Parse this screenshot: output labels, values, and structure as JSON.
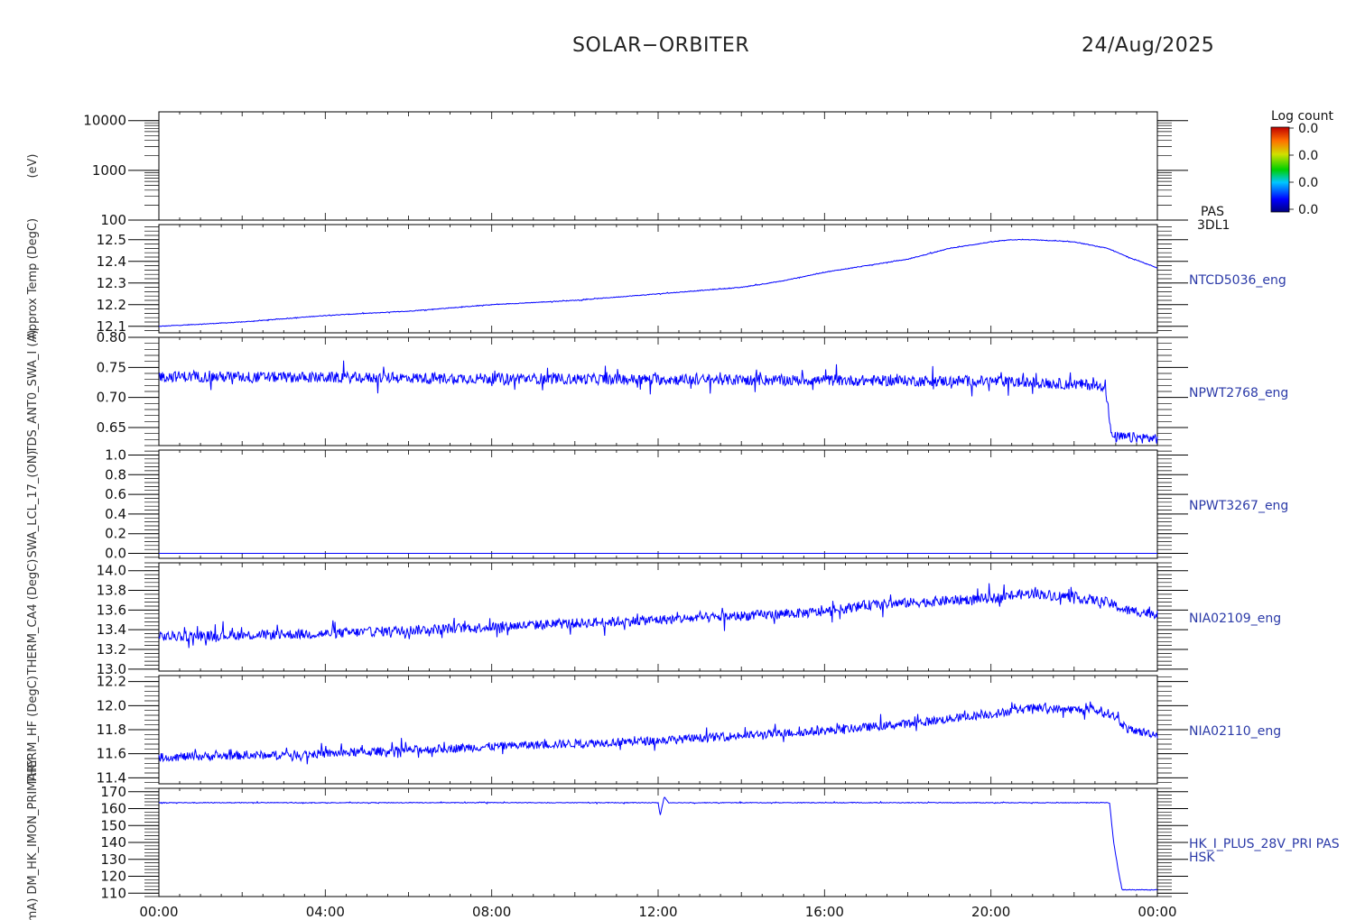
{
  "header": {
    "title": "SOLAR−ORBITER",
    "date": "24/Aug/2025"
  },
  "colorbar": {
    "title": "Log count",
    "tick_labels": [
      "0.0",
      "0.0",
      "0.0",
      "0.0"
    ]
  },
  "x_tick_labels": [
    "00:00",
    "04:00",
    "08:00",
    "12:00",
    "16:00",
    "20:00",
    "00:00"
  ],
  "chart_data": [
    {
      "type": "heatmap",
      "panel_id": "pas-3dl1",
      "label_lines": [
        "PAS",
        "3DL1"
      ],
      "ylabel": "(eV)",
      "log_y": true,
      "ylim": [
        100,
        15000
      ],
      "y_tick_labels": [
        {
          "label": "10000",
          "value": 10000
        },
        {
          "label": "1000",
          "value": 1000
        },
        {
          "label": "100",
          "value": 100
        }
      ],
      "color": "#ffffff",
      "x_hours": [],
      "values": []
    },
    {
      "type": "line",
      "panel_id": "ntcd5036",
      "label_lines": [
        "NTCD5036_eng"
      ],
      "ylabel": "Approx Temp (DegC)",
      "log_y": false,
      "ylim": [
        12.07,
        12.57
      ],
      "y_tick_labels": [
        {
          "label": "12.5",
          "value": 12.5
        },
        {
          "label": "12.4",
          "value": 12.4
        },
        {
          "label": "12.3",
          "value": 12.3
        },
        {
          "label": "12.2",
          "value": 12.2
        },
        {
          "label": "12.1",
          "value": 12.1
        }
      ],
      "color": "#0000ff",
      "x_hours": [
        0,
        2,
        4,
        6,
        8,
        10,
        12,
        14,
        15,
        16,
        17,
        18,
        19,
        20,
        20.5,
        21,
        22,
        22.8,
        23.3,
        24
      ],
      "values": [
        12.1,
        12.12,
        12.15,
        12.17,
        12.2,
        12.22,
        12.25,
        12.28,
        12.31,
        12.35,
        12.38,
        12.41,
        12.46,
        12.49,
        12.5,
        12.5,
        12.49,
        12.46,
        12.42,
        12.37
      ],
      "noise": 0.003
    },
    {
      "type": "line",
      "panel_id": "npwt2768",
      "label_lines": [
        "NPWT2768_eng"
      ],
      "ylabel": "TDS_ANT0_SWA_I (A)",
      "log_y": false,
      "ylim": [
        0.62,
        0.8
      ],
      "y_tick_labels": [
        {
          "label": "0.80",
          "value": 0.8
        },
        {
          "label": "0.75",
          "value": 0.75
        },
        {
          "label": "0.70",
          "value": 0.7
        },
        {
          "label": "0.65",
          "value": 0.65
        }
      ],
      "color": "#0000ff",
      "x_hours": [
        0,
        12,
        20,
        22.75,
        22.9,
        24
      ],
      "values": [
        0.735,
        0.73,
        0.727,
        0.72,
        0.634,
        0.632
      ],
      "noise": 0.018
    },
    {
      "type": "line",
      "panel_id": "npwt3267",
      "label_lines": [
        "NPWT3267_eng"
      ],
      "ylabel": "SWA_LCL_17_(ON)",
      "log_y": false,
      "ylim": [
        -0.05,
        1.05
      ],
      "y_tick_labels": [
        {
          "label": "1.0",
          "value": 1.0
        },
        {
          "label": "0.8",
          "value": 0.8
        },
        {
          "label": "0.6",
          "value": 0.6
        },
        {
          "label": "0.4",
          "value": 0.4
        },
        {
          "label": "0.2",
          "value": 0.2
        },
        {
          "label": "0.0",
          "value": 0.0
        }
      ],
      "color": "#0000ff",
      "x_hours": [
        0,
        24
      ],
      "values": [
        0.0,
        0.0
      ],
      "noise": 0.0
    },
    {
      "type": "line",
      "panel_id": "nia02109",
      "label_lines": [
        "NIA02109_eng"
      ],
      "ylabel": "THERM_CA4 (DegC)",
      "log_y": false,
      "ylim": [
        12.98,
        14.08
      ],
      "y_tick_labels": [
        {
          "label": "14.0",
          "value": 14.0
        },
        {
          "label": "13.8",
          "value": 13.8
        },
        {
          "label": "13.6",
          "value": 13.6
        },
        {
          "label": "13.4",
          "value": 13.4
        },
        {
          "label": "13.2",
          "value": 13.2
        },
        {
          "label": "13.0",
          "value": 13.0
        }
      ],
      "color": "#0000ff",
      "x_hours": [
        0,
        4,
        8,
        12,
        16,
        17,
        20,
        21,
        22,
        22.8,
        23.2,
        24
      ],
      "values": [
        13.33,
        13.36,
        13.43,
        13.5,
        13.58,
        13.65,
        13.72,
        13.77,
        13.73,
        13.68,
        13.6,
        13.56
      ],
      "noise": 0.1
    },
    {
      "type": "line",
      "panel_id": "nia02110",
      "label_lines": [
        "NIA02110_eng"
      ],
      "ylabel": "THERM_HF (DegC)",
      "log_y": false,
      "ylim": [
        11.35,
        12.25
      ],
      "y_tick_labels": [
        {
          "label": "12.2",
          "value": 12.2
        },
        {
          "label": "12.0",
          "value": 12.0
        },
        {
          "label": "11.8",
          "value": 11.8
        },
        {
          "label": "11.6",
          "value": 11.6
        },
        {
          "label": "11.4",
          "value": 11.4
        }
      ],
      "color": "#0000ff",
      "x_hours": [
        0,
        4,
        8,
        12,
        16,
        18,
        20,
        21,
        22.5,
        22.9,
        23.3,
        24
      ],
      "values": [
        11.57,
        11.6,
        11.66,
        11.71,
        11.79,
        11.85,
        11.93,
        11.98,
        11.96,
        11.93,
        11.8,
        11.76
      ],
      "noise": 0.07
    },
    {
      "type": "line",
      "panel_id": "hk-i-plus-28v-pri",
      "label_lines": [
        "HK_I_PLUS_28V_PRI PAS",
        "HSK"
      ],
      "ylabel": "(mA) DM_HK_IMON_PRIMARY",
      "log_y": false,
      "ylim": [
        108,
        172
      ],
      "y_tick_labels": [
        {
          "label": "170",
          "value": 170
        },
        {
          "label": "160",
          "value": 160
        },
        {
          "label": "150",
          "value": 150
        },
        {
          "label": "140",
          "value": 140
        },
        {
          "label": "130",
          "value": 130
        },
        {
          "label": "120",
          "value": 120
        },
        {
          "label": "110",
          "value": 110
        }
      ],
      "color": "#0000ff",
      "x_hours": [
        0,
        12,
        12.05,
        12.15,
        12.25,
        12.35,
        22.85,
        22.95,
        23.05,
        23.15,
        24
      ],
      "values": [
        163.5,
        163.5,
        156,
        167,
        163.5,
        163.5,
        163.5,
        140,
        125,
        112,
        112
      ],
      "noise": 0.4
    }
  ]
}
